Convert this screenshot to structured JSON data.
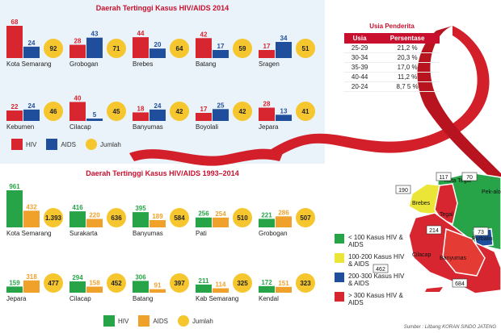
{
  "colors": {
    "hiv2014": "#d7262f",
    "aids2014": "#1f4e9d",
    "hiv9314": "#27a348",
    "aids9314": "#f0a12a",
    "jumlah": "#f6c62e",
    "ribbon": "#d21f2a"
  },
  "chart_data": [
    {
      "type": "bar",
      "title": "Daerah Tertinggi Kasus HIV/AIDS 2014",
      "series_names": [
        "HIV",
        "AIDS"
      ],
      "total_name": "Jumlah",
      "ylim": [
        0,
        70
      ],
      "regions": [
        {
          "name": "Kota Semarang",
          "hiv": 68,
          "aids": 24,
          "total": 92
        },
        {
          "name": "Grobogan",
          "hiv": 28,
          "aids": 43,
          "total": 71
        },
        {
          "name": "Brebes",
          "hiv": 44,
          "aids": 20,
          "total": 64
        },
        {
          "name": "Batang",
          "hiv": 42,
          "aids": 17,
          "total": 59
        },
        {
          "name": "Sragen",
          "hiv": 17,
          "aids": 34,
          "total": 51
        },
        {
          "name": "Kebumen",
          "hiv": 22,
          "aids": 24,
          "total": 46
        },
        {
          "name": "Cilacap",
          "hiv": 40,
          "aids": 5,
          "total": 45
        },
        {
          "name": "Banyumas",
          "hiv": 18,
          "aids": 24,
          "total": 42
        },
        {
          "name": "Boyolali",
          "hiv": 17,
          "aids": 25,
          "total": 42
        },
        {
          "name": "Jepara",
          "hiv": 28,
          "aids": 13,
          "total": 41
        }
      ]
    },
    {
      "type": "bar",
      "title": "Daerah Tertinggi Kasus HIV/AIDS 1993–2014",
      "series_names": [
        "HIV",
        "AIDS"
      ],
      "total_name": "Jumlah",
      "ylim": [
        0,
        961
      ],
      "regions": [
        {
          "name": "Kota Semarang",
          "hiv": 961,
          "aids": 432,
          "total": "1.393"
        },
        {
          "name": "Surakarta",
          "hiv": 416,
          "aids": 220,
          "total": "636"
        },
        {
          "name": "Banyumas",
          "hiv": 395,
          "aids": 189,
          "total": "584"
        },
        {
          "name": "Pati",
          "hiv": 256,
          "aids": 254,
          "total": "510"
        },
        {
          "name": "Grobogan",
          "hiv": 221,
          "aids": 286,
          "total": "507"
        },
        {
          "name": "Jepara",
          "hiv": 159,
          "aids": 318,
          "total": "477"
        },
        {
          "name": "Cilacap",
          "hiv": 294,
          "aids": 158,
          "total": "452"
        },
        {
          "name": "Batang",
          "hiv": 306,
          "aids": 91,
          "total": "397"
        },
        {
          "name": "Kab Semarang",
          "hiv": 211,
          "aids": 114,
          "total": "325"
        },
        {
          "name": "Kendal",
          "hiv": 172,
          "aids": 151,
          "total": "323"
        }
      ]
    },
    {
      "type": "table",
      "title": "Usia Penderita",
      "columns": [
        "Usia",
        "Persentase"
      ],
      "rows": [
        [
          "25-29",
          "21,2 %"
        ],
        [
          "30-34",
          "20,3 %"
        ],
        [
          "35-39",
          "17,0 %"
        ],
        [
          "40-44",
          "11,2 %"
        ],
        [
          "20-24",
          "8,7 5 %"
        ]
      ]
    }
  ],
  "map": {
    "labels": [
      "Brebes",
      "Tegal",
      "Kota Tegal",
      "Cilacap",
      "Banyumas",
      "Purbalingga",
      "Pekalongan"
    ],
    "label_texts": [
      "Brebes",
      "Tegal",
      "Kota Tegal",
      "Cilacap",
      "Banyumas",
      "Purbalin",
      "Pek-alon"
    ],
    "badges": [
      "190",
      "117",
      "70",
      "214",
      "73",
      "462",
      "684"
    ],
    "legend": [
      {
        "label": "< 100 Kasus HIV & AIDS",
        "color": "#27a348"
      },
      {
        "label": "100-200 Kasus HIV & AIDS",
        "color": "#ebe538"
      },
      {
        "label": "200-300 Kasus HIV & AIDS",
        "color": "#1f4e9d"
      },
      {
        "label": "> 300 Kasus HIV & AIDS",
        "color": "#d7262f"
      }
    ]
  },
  "source": "Sumber : Litbang KORAN SINDO JATENG"
}
